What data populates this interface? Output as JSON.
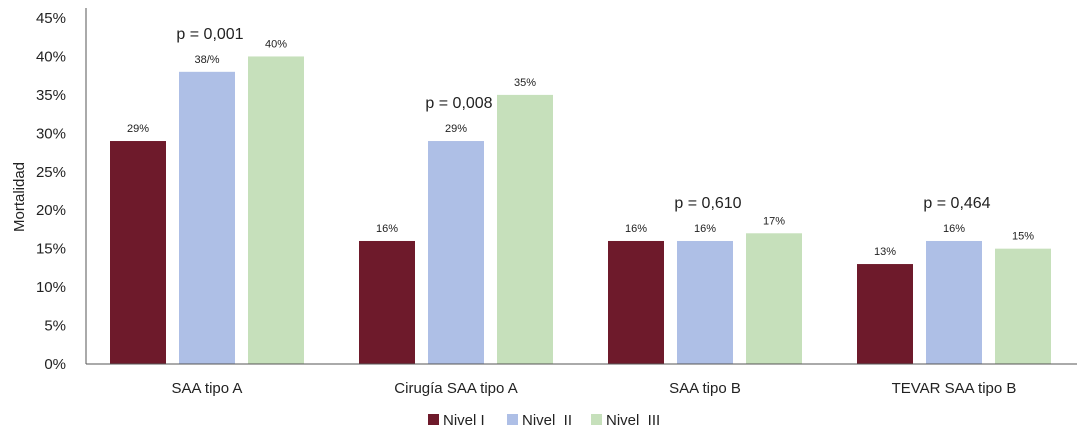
{
  "chart_data": {
    "type": "bar",
    "ylabel": "Mortalidad",
    "ylim": [
      0,
      45
    ],
    "yticks": [
      "0%",
      "5%",
      "10%",
      "15%",
      "20%",
      "25%",
      "30%",
      "35%",
      "40%",
      "45%"
    ],
    "categories": [
      "SAA tipo A",
      "Cirugía SAA tipo A",
      "SAA tipo B",
      "TEVAR SAA tipo B"
    ],
    "series": [
      {
        "name": "Nivel I",
        "color": "#6e1a2b",
        "values": [
          29,
          16,
          16,
          13
        ],
        "labels": [
          "29%",
          "16%",
          "16%",
          "13%"
        ]
      },
      {
        "name": "Nivel  II",
        "color": "#aebfe6",
        "values": [
          38,
          29,
          16,
          16
        ],
        "labels": [
          "38/%",
          "29%",
          "16%",
          "16%"
        ]
      },
      {
        "name": "Nivel  III",
        "color": "#c6e0bb",
        "values": [
          40,
          35,
          17,
          15
        ],
        "labels": [
          "40%",
          "35%",
          "17%",
          "15%"
        ]
      }
    ],
    "pvalues": [
      "p = 0,001",
      "p = 0,008",
      "p = 0,610",
      "p = 0,464"
    ],
    "legend_position": "bottom",
    "grid": false
  }
}
